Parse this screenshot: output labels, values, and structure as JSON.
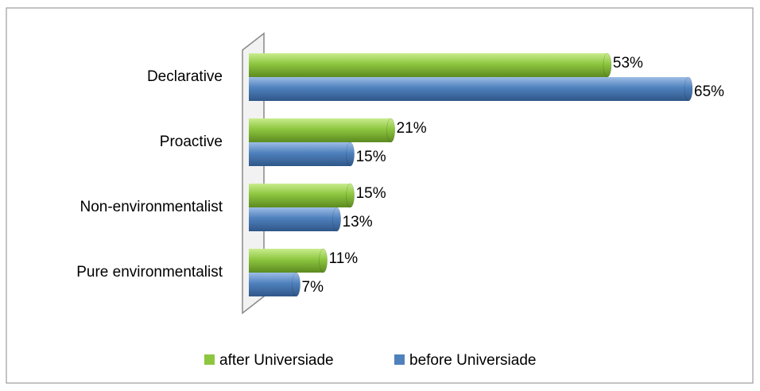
{
  "chart_data": {
    "type": "bar",
    "orientation": "horizontal",
    "categories": [
      "Declarative",
      "Proactive",
      "Non-environmentalist",
      "Pure environmentalist"
    ],
    "series": [
      {
        "name": "after Universiade",
        "color": "#8dc63f",
        "values": [
          53,
          21,
          15,
          11
        ],
        "value_labels": [
          "53%",
          "21%",
          "15%",
          "11%"
        ]
      },
      {
        "name": "before Universiade",
        "color": "#4f81bd",
        "values": [
          65,
          15,
          13,
          7
        ],
        "value_labels": [
          "65%",
          "15%",
          "13%",
          "7%"
        ]
      }
    ],
    "legend": "bottom"
  }
}
